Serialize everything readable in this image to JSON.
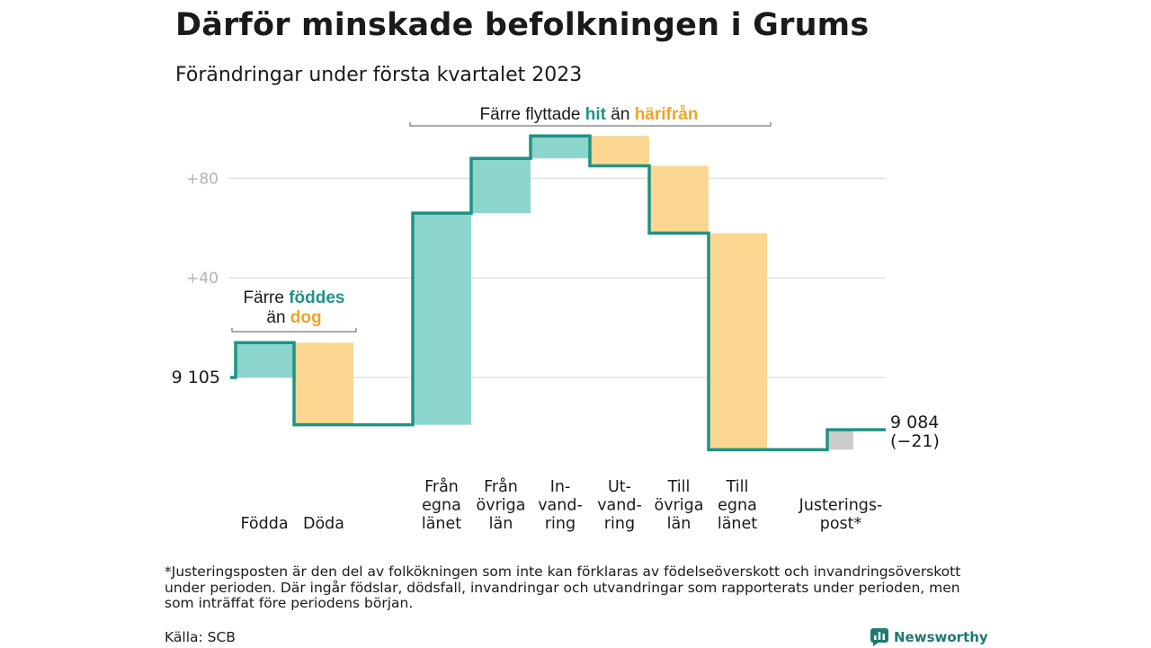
{
  "title": "Därför minskade befolkningen i Grums",
  "subtitle": "Förändringar under första kvartalet 2023",
  "chart_data": {
    "type": "waterfall",
    "start": {
      "label": "9 105",
      "value": 0
    },
    "end": {
      "label": "9 084",
      "change_label": "(−21)",
      "value": -21
    },
    "steps": [
      {
        "label": [
          "Födda"
        ],
        "value": 14,
        "color": "#8cd5cd"
      },
      {
        "label": [
          "Döda"
        ],
        "value": -33,
        "color": "#fbd792"
      },
      {
        "label": [
          "Från",
          "egna",
          "länet"
        ],
        "value": 85,
        "color": "#8cd5cd"
      },
      {
        "label": [
          "Från",
          "övriga",
          "län"
        ],
        "value": 22,
        "color": "#8cd5cd"
      },
      {
        "label": [
          "In-",
          "vand-",
          "ring"
        ],
        "value": 9,
        "color": "#8cd5cd"
      },
      {
        "label": [
          "Ut-",
          "vand-",
          "ring"
        ],
        "value": -12,
        "color": "#fbd792"
      },
      {
        "label": [
          "Till",
          "övriga",
          "län"
        ],
        "value": -27,
        "color": "#fbd792"
      },
      {
        "label": [
          "Till",
          "egna",
          "länet"
        ],
        "value": -87,
        "color": "#fbd792"
      },
      {
        "label": [
          "Justerings-",
          "post*"
        ],
        "value": 8,
        "color": "#cccccc"
      }
    ],
    "y_ticks": [
      {
        "value": 80,
        "label": "+80"
      },
      {
        "value": 40,
        "label": "+40"
      },
      {
        "value": 0,
        "label": ""
      }
    ],
    "ylim": [
      -30,
      94
    ],
    "grid": true,
    "line_color": "#1e9384",
    "annotations": {
      "births": {
        "line1": [
          "Färre ",
          "föddes"
        ],
        "line2": [
          "än ",
          "dog"
        ]
      },
      "moves": [
        "Färre flyttade ",
        "hit",
        " än ",
        "härifrån"
      ]
    },
    "highlight_colors": {
      "teal": "#1e9384",
      "orange": "#f0a328"
    }
  },
  "footnote": "*Justeringsposten är den del av folkökningen som inte kan förklaras av födelseöverskott och invandringsöverskott under perioden. Där ingår födslar, dödsfall, invandringar och utvandringar som rapporterats under perioden, men som inträffat före periodens början.",
  "source": "Källa: SCB",
  "brand": "Newsworthy"
}
